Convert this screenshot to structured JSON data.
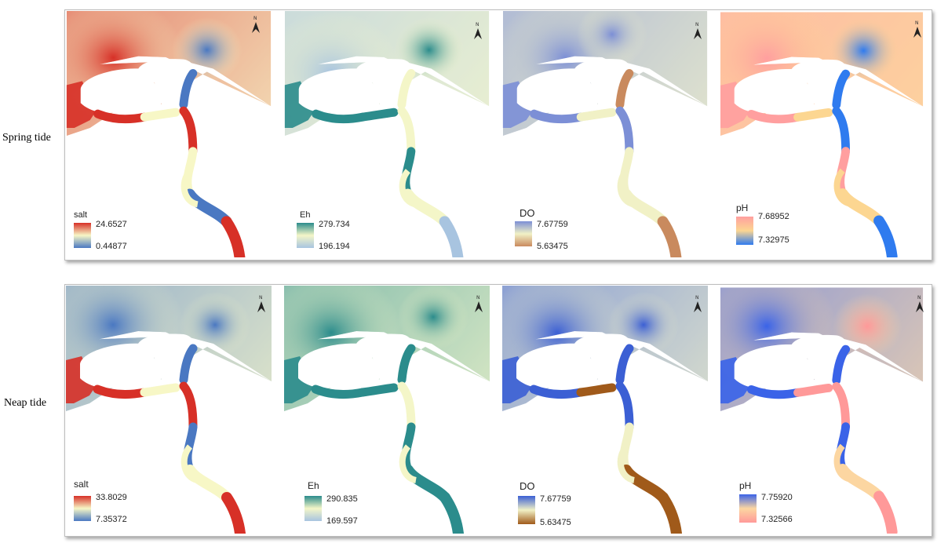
{
  "rows": [
    {
      "label": "Spring  tide",
      "panels": [
        {
          "variable": "salt",
          "legend_title": "salt",
          "max": "24.6527",
          "min": "0.44877",
          "colors": {
            "high": "#d73027",
            "mid": "#f7f7c6",
            "low": "#4a78c2"
          }
        },
        {
          "variable": "Eh",
          "legend_title": "Eh",
          "max": "279.734",
          "min": "196.194",
          "colors": {
            "high": "#2b8c8c",
            "mid": "#f4f6c8",
            "low": "#a8c4e0"
          }
        },
        {
          "variable": "DO",
          "legend_title": "DO",
          "max": "7.67759",
          "min": "5.63475",
          "colors": {
            "high": "#7c8fd6",
            "mid": "#f1f1c6",
            "low": "#c98a5e"
          }
        },
        {
          "variable": "pH",
          "legend_title": "pH",
          "max": "7.68952",
          "min": "7.32975",
          "colors": {
            "high": "#ff9f9f",
            "mid": "#fcd691",
            "low": "#2f7bef"
          }
        }
      ]
    },
    {
      "label": "Neap tide",
      "panels": [
        {
          "variable": "salt",
          "legend_title": "salt",
          "max": "33.8029",
          "min": "7.35372",
          "colors": {
            "high": "#d73027",
            "mid": "#f7f7c6",
            "low": "#4a78c2"
          }
        },
        {
          "variable": "Eh",
          "legend_title": "Eh",
          "max": "290.835",
          "min": "169.597",
          "colors": {
            "high": "#2b8c8c",
            "mid": "#f4f6c8",
            "low": "#a8c4e0"
          }
        },
        {
          "variable": "DO",
          "legend_title": "DO",
          "max": "7.67759",
          "min": "5.63475",
          "colors": {
            "high": "#3b5fd4",
            "mid": "#f1f1c6",
            "low": "#a05a1a"
          }
        },
        {
          "variable": "pH",
          "legend_title": "pH",
          "max": "7.75920",
          "min": "7.32566",
          "colors": {
            "high": "#3a63e8",
            "mid": "#fcd6a1",
            "low": "#ff9999"
          }
        }
      ]
    }
  ]
}
